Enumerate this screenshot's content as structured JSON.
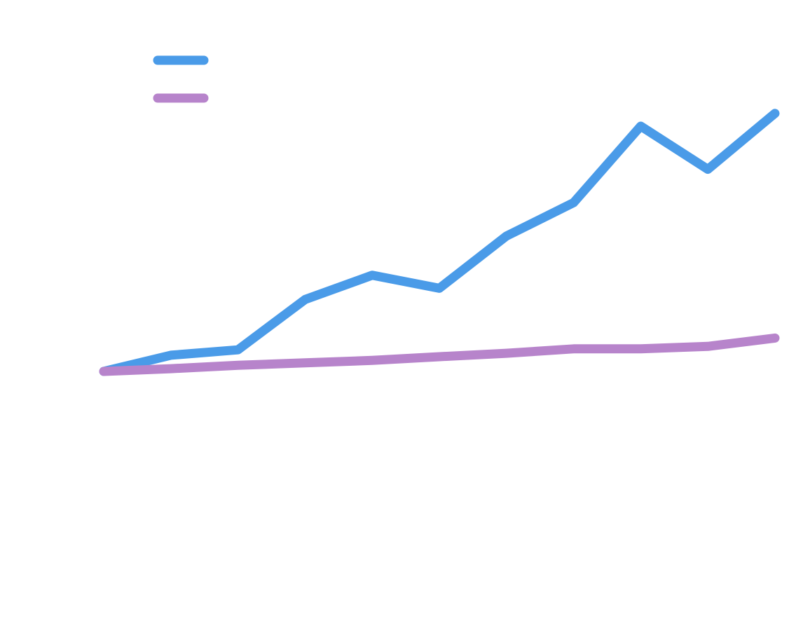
{
  "chart_data": {
    "type": "line",
    "title": "",
    "xlabel": "",
    "ylabel": "",
    "x": [
      0,
      1,
      2,
      3,
      4,
      5,
      6,
      7,
      8,
      9,
      10
    ],
    "ylim": [
      -100,
      1000
    ],
    "grid": false,
    "legend_position": "top-left",
    "series": [
      {
        "name": "",
        "color": "#4A9BE8",
        "values": [
          0,
          66,
          88,
          293,
          392,
          339,
          552,
          688,
          1000,
          824,
          1052
        ]
      },
      {
        "name": "",
        "color": "#B784CB",
        "values": [
          0,
          11,
          25,
          35,
          45,
          60,
          74,
          92,
          92,
          102,
          136
        ]
      }
    ]
  }
}
